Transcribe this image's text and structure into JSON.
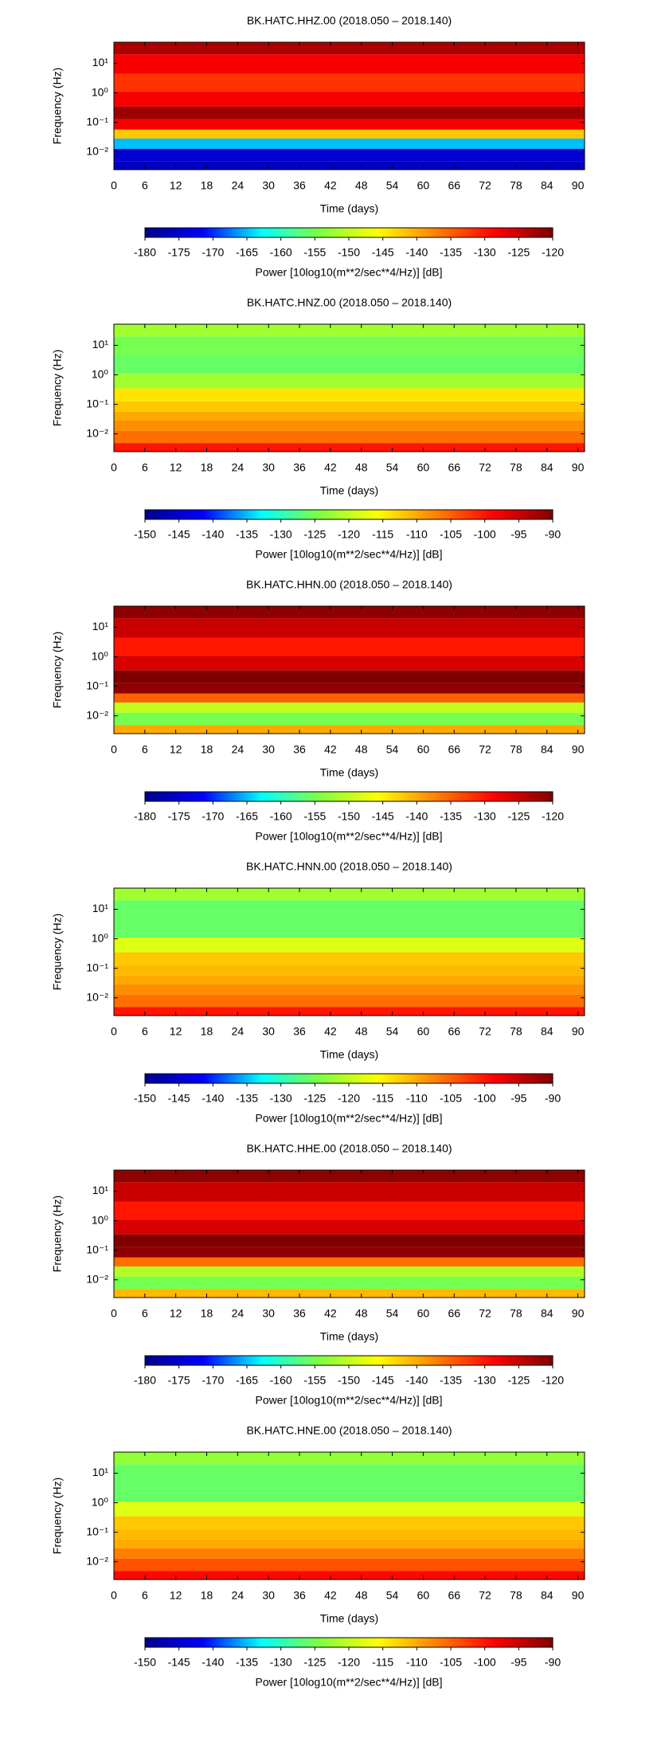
{
  "chart_data": [
    {
      "type": "spectrogram",
      "title": "BK.HATC.HHZ.00 (2018.050 – 2018.140)",
      "xlabel": "Time (days)",
      "ylabel": "Frequency (Hz)",
      "xlim": [
        0,
        91.3
      ],
      "xticks": [
        0,
        6,
        12,
        18,
        24,
        30,
        36,
        42,
        48,
        54,
        60,
        66,
        72,
        78,
        84,
        90
      ],
      "ylim": [
        0.0025,
        52
      ],
      "log_y": true,
      "yticks": [
        {
          "value": 10,
          "label": "10¹"
        },
        {
          "value": 1,
          "label": "10⁰"
        },
        {
          "value": 0.1,
          "label": "10⁻¹"
        },
        {
          "value": 0.01,
          "label": "10⁻²"
        }
      ],
      "frequency": [
        40,
        10,
        2,
        0.6,
        0.2,
        0.08,
        0.04,
        0.02,
        0.008,
        0.003
      ],
      "values": [
        -123,
        -128,
        -132,
        -128,
        -122,
        -128,
        -142,
        -165,
        -175,
        -176
      ],
      "clim": [
        -180,
        -120
      ],
      "cticks": [
        -180,
        -175,
        -170,
        -165,
        -160,
        -155,
        -150,
        -145,
        -140,
        -135,
        -130,
        -125,
        -120
      ],
      "colorbar_label": "Power [10log10(m**2/sec**4/Hz)] [dB]",
      "colormap": [
        "#00008f",
        "#0000ff",
        "#00ffff",
        "#80ff40",
        "#ffff00",
        "#ff8000",
        "#ff0000",
        "#800000"
      ]
    },
    {
      "type": "spectrogram",
      "title": "BK.HATC.HNZ.00 (2018.050 – 2018.140)",
      "xlabel": "Time (days)",
      "ylabel": "Frequency (Hz)",
      "xlim": [
        0,
        91.3
      ],
      "xticks": [
        0,
        6,
        12,
        18,
        24,
        30,
        36,
        42,
        48,
        54,
        60,
        66,
        72,
        78,
        84,
        90
      ],
      "ylim": [
        0.0025,
        52
      ],
      "log_y": true,
      "yticks": [
        {
          "value": 10,
          "label": "10¹"
        },
        {
          "value": 1,
          "label": "10⁰"
        },
        {
          "value": 0.1,
          "label": "10⁻¹"
        },
        {
          "value": 0.01,
          "label": "10⁻²"
        }
      ],
      "frequency": [
        40,
        10,
        2,
        0.6,
        0.2,
        0.08,
        0.04,
        0.02,
        0.008,
        0.003
      ],
      "values": [
        -122,
        -125,
        -126,
        -122,
        -114,
        -112,
        -110,
        -108,
        -106,
        -100
      ],
      "clim": [
        -150,
        -90
      ],
      "cticks": [
        -150,
        -145,
        -140,
        -135,
        -130,
        -125,
        -120,
        -115,
        -110,
        -105,
        -100,
        -95,
        -90
      ],
      "colorbar_label": "Power [10log10(m**2/sec**4/Hz)] [dB]",
      "colormap": [
        "#00008f",
        "#0000ff",
        "#00ffff",
        "#80ff40",
        "#ffff00",
        "#ff8000",
        "#ff0000",
        "#800000"
      ]
    },
    {
      "type": "spectrogram",
      "title": "BK.HATC.HHN.00 (2018.050 – 2018.140)",
      "xlabel": "Time (days)",
      "ylabel": "Frequency (Hz)",
      "xlim": [
        0,
        91.3
      ],
      "xticks": [
        0,
        6,
        12,
        18,
        24,
        30,
        36,
        42,
        48,
        54,
        60,
        66,
        72,
        78,
        84,
        90
      ],
      "ylim": [
        0.0025,
        52
      ],
      "log_y": true,
      "yticks": [
        {
          "value": 10,
          "label": "10¹"
        },
        {
          "value": 1,
          "label": "10⁰"
        },
        {
          "value": 0.1,
          "label": "10⁻¹"
        },
        {
          "value": 0.01,
          "label": "10⁻²"
        }
      ],
      "frequency": [
        40,
        10,
        2,
        0.6,
        0.2,
        0.08,
        0.04,
        0.02,
        0.008,
        0.003
      ],
      "values": [
        -121,
        -125,
        -130,
        -126,
        -120,
        -121,
        -135,
        -150,
        -155,
        -140
      ],
      "clim": [
        -180,
        -120
      ],
      "cticks": [
        -180,
        -175,
        -170,
        -165,
        -160,
        -155,
        -150,
        -145,
        -140,
        -135,
        -130,
        -125,
        -120
      ],
      "colorbar_label": "Power [10log10(m**2/sec**4/Hz)] [dB]",
      "colormap": [
        "#00008f",
        "#0000ff",
        "#00ffff",
        "#80ff40",
        "#ffff00",
        "#ff8000",
        "#ff0000",
        "#800000"
      ]
    },
    {
      "type": "spectrogram",
      "title": "BK.HATC.HNN.00 (2018.050 – 2018.140)",
      "xlabel": "Time (days)",
      "ylabel": "Frequency (Hz)",
      "xlim": [
        0,
        91.3
      ],
      "xticks": [
        0,
        6,
        12,
        18,
        24,
        30,
        36,
        42,
        48,
        54,
        60,
        66,
        72,
        78,
        84,
        90
      ],
      "ylim": [
        0.0025,
        52
      ],
      "log_y": true,
      "yticks": [
        {
          "value": 10,
          "label": "10¹"
        },
        {
          "value": 1,
          "label": "10⁰"
        },
        {
          "value": 0.1,
          "label": "10⁻¹"
        },
        {
          "value": 0.01,
          "label": "10⁻²"
        }
      ],
      "frequency": [
        40,
        10,
        2,
        0.6,
        0.2,
        0.08,
        0.04,
        0.02,
        0.008,
        0.003
      ],
      "values": [
        -122,
        -126,
        -126,
        -118,
        -112,
        -111,
        -110,
        -108,
        -106,
        -100
      ],
      "clim": [
        -150,
        -90
      ],
      "cticks": [
        -150,
        -145,
        -140,
        -135,
        -130,
        -125,
        -120,
        -115,
        -110,
        -105,
        -100,
        -95,
        -90
      ],
      "colorbar_label": "Power [10log10(m**2/sec**4/Hz)] [dB]",
      "colormap": [
        "#00008f",
        "#0000ff",
        "#00ffff",
        "#80ff40",
        "#ffff00",
        "#ff8000",
        "#ff0000",
        "#800000"
      ]
    },
    {
      "type": "spectrogram",
      "title": "BK.HATC.HHE.00 (2018.050 – 2018.140)",
      "xlabel": "Time (days)",
      "ylabel": "Frequency (Hz)",
      "xlim": [
        0,
        91.3
      ],
      "xticks": [
        0,
        6,
        12,
        18,
        24,
        30,
        36,
        42,
        48,
        54,
        60,
        66,
        72,
        78,
        84,
        90
      ],
      "ylim": [
        0.0025,
        52
      ],
      "log_y": true,
      "yticks": [
        {
          "value": 10,
          "label": "10¹"
        },
        {
          "value": 1,
          "label": "10⁰"
        },
        {
          "value": 0.1,
          "label": "10⁻¹"
        },
        {
          "value": 0.01,
          "label": "10⁻²"
        }
      ],
      "frequency": [
        40,
        10,
        2,
        0.6,
        0.2,
        0.08,
        0.04,
        0.02,
        0.008,
        0.003
      ],
      "values": [
        -121,
        -125,
        -130,
        -126,
        -120,
        -121,
        -136,
        -151,
        -155,
        -141
      ],
      "clim": [
        -180,
        -120
      ],
      "cticks": [
        -180,
        -175,
        -170,
        -165,
        -160,
        -155,
        -150,
        -145,
        -140,
        -135,
        -130,
        -125,
        -120
      ],
      "colorbar_label": "Power [10log10(m**2/sec**4/Hz)] [dB]",
      "colormap": [
        "#00008f",
        "#0000ff",
        "#00ffff",
        "#80ff40",
        "#ffff00",
        "#ff8000",
        "#ff0000",
        "#800000"
      ]
    },
    {
      "type": "spectrogram",
      "title": "BK.HATC.HNE.00 (2018.050 – 2018.140)",
      "xlabel": "Time (days)",
      "ylabel": "Frequency (Hz)",
      "xlim": [
        0,
        91.3
      ],
      "xticks": [
        0,
        6,
        12,
        18,
        24,
        30,
        36,
        42,
        48,
        54,
        60,
        66,
        72,
        78,
        84,
        90
      ],
      "ylim": [
        0.0025,
        52
      ],
      "log_y": true,
      "yticks": [
        {
          "value": 10,
          "label": "10¹"
        },
        {
          "value": 1,
          "label": "10⁰"
        },
        {
          "value": 0.1,
          "label": "10⁻¹"
        },
        {
          "value": 0.01,
          "label": "10⁻²"
        }
      ],
      "frequency": [
        40,
        10,
        2,
        0.6,
        0.2,
        0.08,
        0.04,
        0.02,
        0.008,
        0.003
      ],
      "values": [
        -123,
        -126,
        -126,
        -118,
        -112,
        -111,
        -110,
        -107,
        -104,
        -99
      ],
      "clim": [
        -150,
        -90
      ],
      "cticks": [
        -150,
        -145,
        -140,
        -135,
        -130,
        -125,
        -120,
        -115,
        -110,
        -105,
        -100,
        -95,
        -90
      ],
      "colorbar_label": "Power [10log10(m**2/sec**4/Hz)] [dB]",
      "colormap": [
        "#00008f",
        "#0000ff",
        "#00ffff",
        "#80ff40",
        "#ffff00",
        "#ff8000",
        "#ff0000",
        "#800000"
      ]
    }
  ]
}
